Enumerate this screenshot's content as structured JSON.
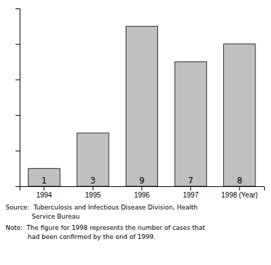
{
  "chart_data": {
    "type": "bar",
    "categories": [
      "1994",
      "1995",
      "1996",
      "1997",
      "1998 (Year)"
    ],
    "values": [
      1,
      3,
      9,
      7,
      8
    ],
    "color": "#c0c0c0",
    "ylim": [
      0,
      10
    ],
    "yticks": [
      0,
      2,
      4,
      6,
      8,
      10
    ],
    "tick_labels": "x",
    "data_labels": true,
    "grid": false,
    "annotations": [
      "Source:  Tuberculosis and Infectious Disease Division, Health",
      "             Service Bureau",
      "Note:  The figure for 1998 represents the number of cases that",
      "           had been confirmed by the end of 1999."
    ]
  }
}
